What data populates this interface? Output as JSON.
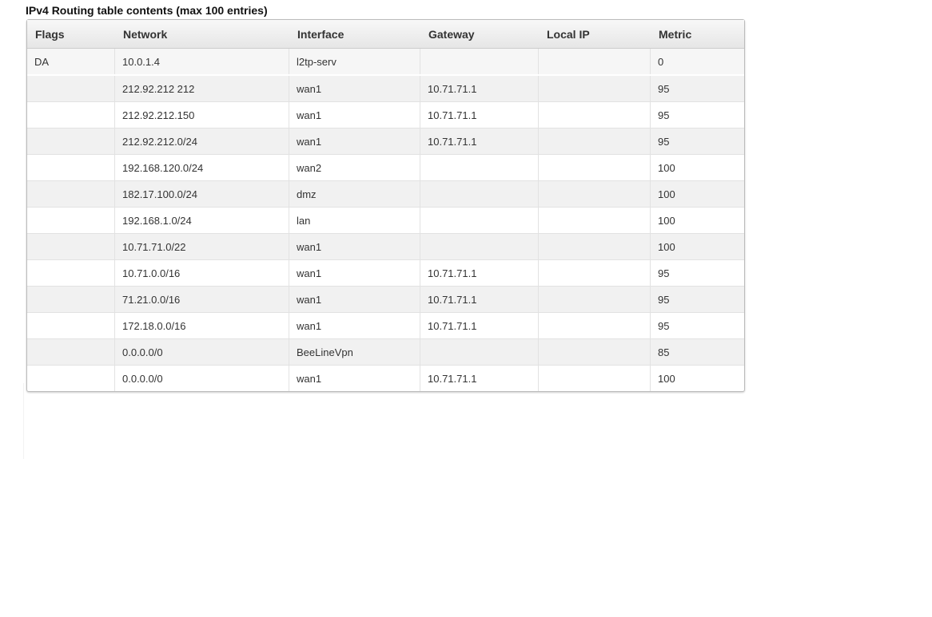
{
  "title": "IPv4 Routing table contents (max 100 entries)",
  "columns": [
    "Flags",
    "Network",
    "Interface",
    "Gateway",
    "Local IP",
    "Metric"
  ],
  "rows": [
    [
      "DA",
      "10.0.1.4",
      "l2tp-serv",
      "",
      "",
      "0"
    ],
    [
      "",
      "212.92.212 212",
      "wan1",
      "10.71.71.1",
      "",
      "95"
    ],
    [
      "",
      "212.92.212.150",
      "wan1",
      "10.71.71.1",
      "",
      "95"
    ],
    [
      "",
      "212.92.212.0/24",
      "wan1",
      "10.71.71.1",
      "",
      "95"
    ],
    [
      "",
      "192.168.120.0/24",
      "wan2",
      "",
      "",
      "100"
    ],
    [
      "",
      "182.17.100.0/24",
      "dmz",
      "",
      "",
      "100"
    ],
    [
      "",
      "192.168.1.0/24",
      "lan",
      "",
      "",
      "100"
    ],
    [
      "",
      "10.71.71.0/22",
      "wan1",
      "",
      "",
      "100"
    ],
    [
      "",
      "10.71.0.0/16",
      "wan1",
      "10.71.71.1",
      "",
      "95"
    ],
    [
      "",
      "71.21.0.0/16",
      "wan1",
      "10.71.71.1",
      "",
      "95"
    ],
    [
      "",
      "172.18.0.0/16",
      "wan1",
      "10.71.71.1",
      "",
      "95"
    ],
    [
      "",
      "0.0.0.0/0",
      "BeeLineVpn",
      "",
      "",
      "85"
    ],
    [
      "",
      "0.0.0.0/0",
      "wan1",
      "10.71.71.1",
      "",
      "100"
    ]
  ]
}
